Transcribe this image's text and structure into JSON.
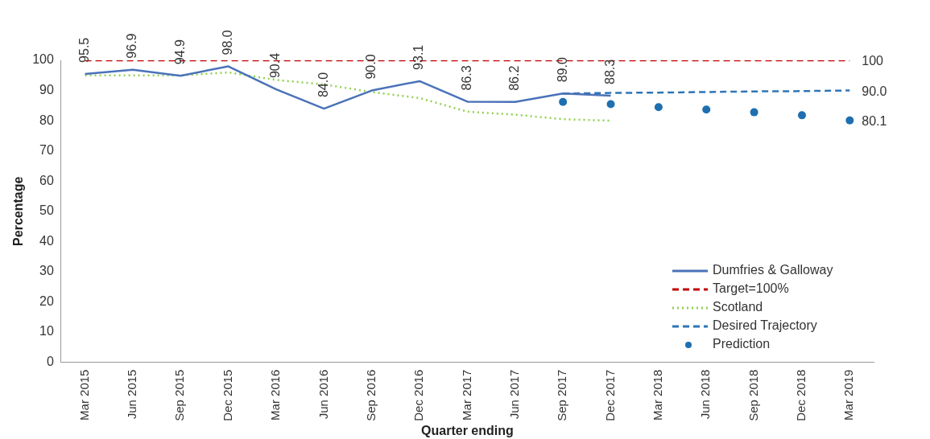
{
  "chart_data": {
    "type": "line",
    "xlabel": "Quarter ending",
    "ylabel": "Percentage",
    "categories": [
      "Mar 2015",
      "Jun 2015",
      "Sep 2015",
      "Dec 2015",
      "Mar 2016",
      "Jun 2016",
      "Sep 2016",
      "Dec 2016",
      "Mar 2017",
      "Jun 2017",
      "Sep 2017",
      "Dec 2017",
      "Mar 2018",
      "Jun 2018",
      "Sep 2018",
      "Dec 2018",
      "Mar 2019"
    ],
    "series": [
      {
        "name": "Dumfries & Galloway",
        "color": "#4a72b8",
        "line_style": "solid",
        "values": [
          95.5,
          96.9,
          94.9,
          98.0,
          90.4,
          84.0,
          90.0,
          93.1,
          86.3,
          86.2,
          89.0,
          88.3,
          null,
          null,
          null,
          null,
          null
        ],
        "value_labels": [
          "95.5",
          "96.9",
          "94.9",
          "98.0",
          "90.4",
          "84.0",
          "90.0",
          "93.1",
          "86.3",
          "86.2",
          "89.0",
          "88.3",
          null,
          null,
          null,
          null,
          null
        ]
      },
      {
        "name": "Target=100%",
        "color": "#c00000",
        "line_style": "dashed",
        "values": [
          100,
          100,
          100,
          100,
          100,
          100,
          100,
          100,
          100,
          100,
          100,
          100,
          100,
          100,
          100,
          100,
          100
        ],
        "value_labels": [
          null,
          null,
          null,
          null,
          null,
          null,
          null,
          null,
          null,
          null,
          null,
          null,
          null,
          null,
          null,
          null,
          "100"
        ]
      },
      {
        "name": "Scotland",
        "color": "#92d050",
        "line_style": "dotted",
        "values": [
          95,
          95,
          95,
          96,
          93.5,
          92,
          89.5,
          87.5,
          83,
          82,
          80.5,
          80,
          null,
          null,
          null,
          null,
          null
        ]
      },
      {
        "name": "Desired Trajectory",
        "color": "#2e75b6",
        "line_style": "dashed",
        "values": [
          null,
          null,
          null,
          null,
          null,
          null,
          null,
          null,
          null,
          null,
          89.0,
          89.2,
          89.3,
          89.5,
          89.7,
          89.8,
          90.0
        ],
        "value_labels": [
          null,
          null,
          null,
          null,
          null,
          null,
          null,
          null,
          null,
          null,
          null,
          null,
          null,
          null,
          null,
          null,
          "90.0"
        ]
      },
      {
        "name": "Prediction",
        "type": "scatter",
        "marker": "circle",
        "color": "#1f6fb0",
        "values": [
          null,
          null,
          null,
          null,
          null,
          null,
          null,
          null,
          null,
          null,
          86.2,
          85.5,
          84.5,
          83.7,
          82.8,
          81.8,
          80.1
        ],
        "value_labels": [
          null,
          null,
          null,
          null,
          null,
          null,
          null,
          null,
          null,
          null,
          null,
          null,
          null,
          null,
          null,
          null,
          "80.1"
        ]
      }
    ],
    "ylim": [
      0,
      100
    ],
    "yticks": [
      0,
      10,
      20,
      30,
      40,
      50,
      60,
      70,
      80,
      90,
      100
    ],
    "grid": false,
    "legend": "bottom right"
  }
}
